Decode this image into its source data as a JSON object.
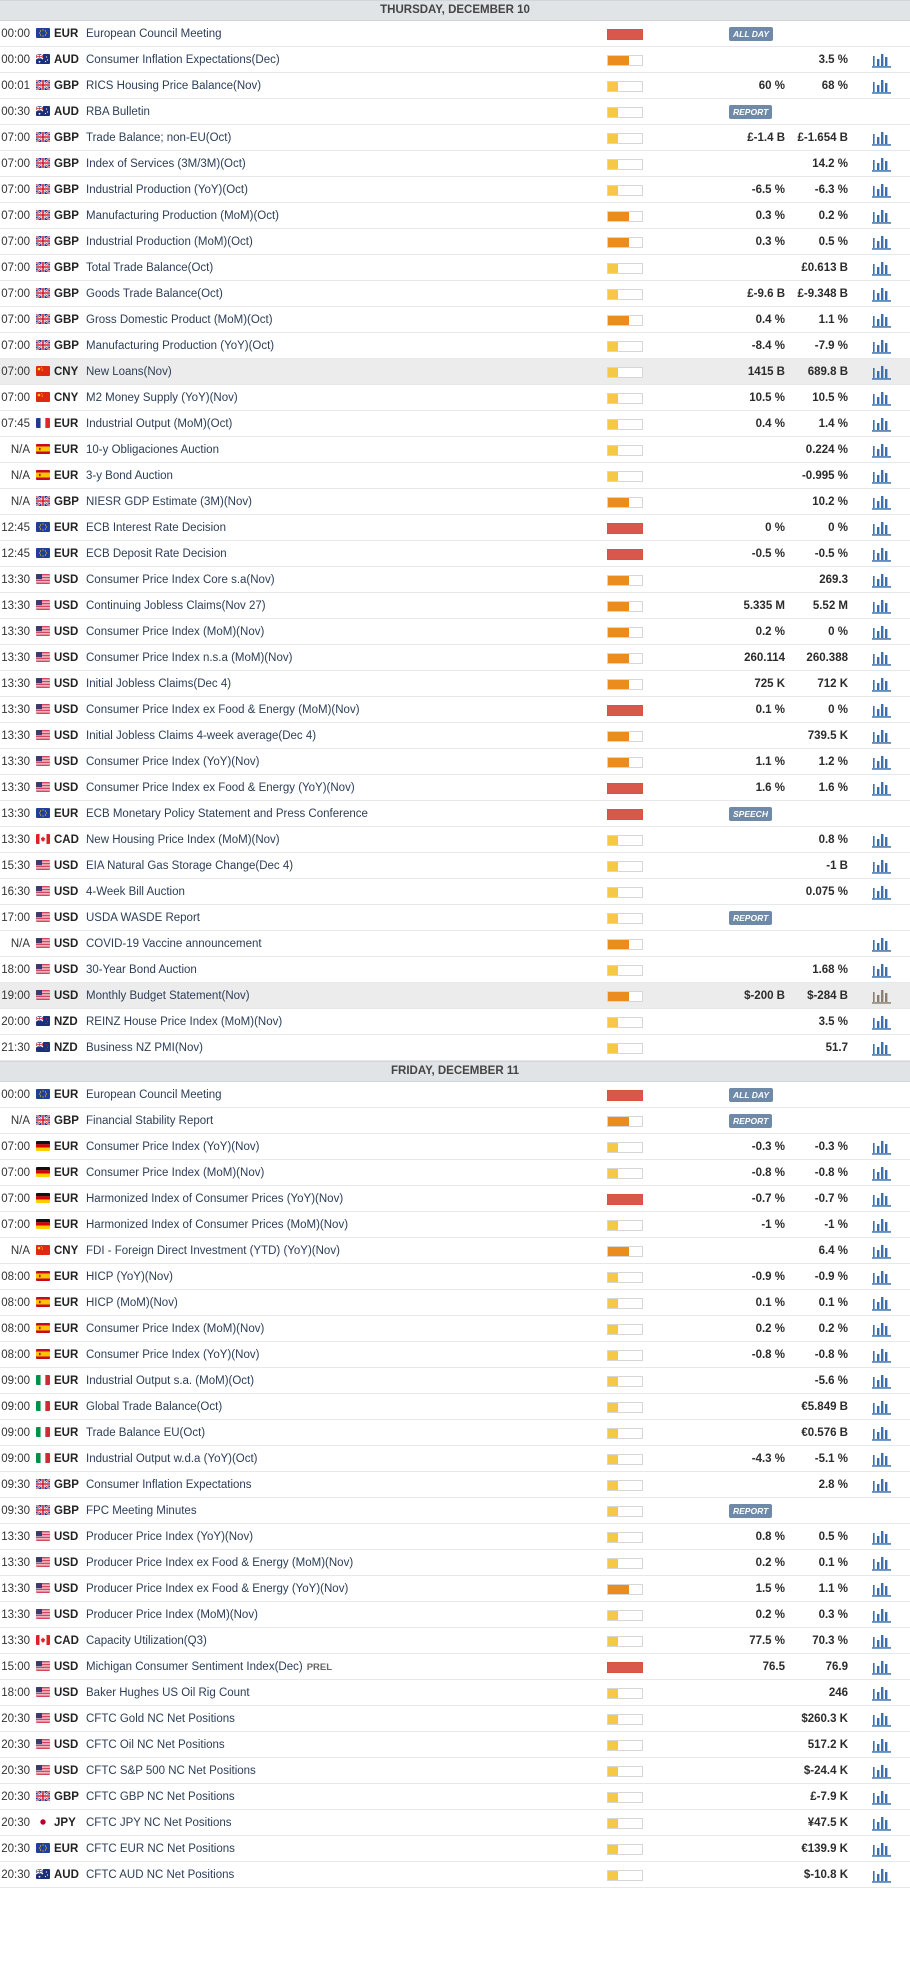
{
  "days": [
    {
      "label": "THURSDAY, DECEMBER 10",
      "events": [
        {
          "time": "00:00",
          "flag": "eu",
          "currency": "EUR",
          "name": "European Council Meeting",
          "volatility": "high",
          "badge": "ALL DAY"
        },
        {
          "time": "00:00",
          "flag": "au",
          "currency": "AUD",
          "name": "Consumer Inflation Expectations(Dec)",
          "volatility": "med",
          "consensus": "",
          "previous": "3.5 %",
          "chart": true
        },
        {
          "time": "00:01",
          "flag": "gb",
          "currency": "GBP",
          "name": "RICS Housing Price Balance(Nov)",
          "volatility": "low",
          "consensus": "60 %",
          "previous": "68 %",
          "chart": true
        },
        {
          "time": "00:30",
          "flag": "au",
          "currency": "AUD",
          "name": "RBA Bulletin",
          "volatility": "low",
          "badge": "REPORT"
        },
        {
          "time": "07:00",
          "flag": "gb",
          "currency": "GBP",
          "name": "Trade Balance; non-EU(Oct)",
          "volatility": "low",
          "consensus": "£-1.4 B",
          "previous": "£-1.654 B",
          "chart": true
        },
        {
          "time": "07:00",
          "flag": "gb",
          "currency": "GBP",
          "name": "Index of Services (3M/3M)(Oct)",
          "volatility": "low",
          "consensus": "",
          "previous": "14.2 %",
          "chart": true
        },
        {
          "time": "07:00",
          "flag": "gb",
          "currency": "GBP",
          "name": "Industrial Production (YoY)(Oct)",
          "volatility": "low",
          "consensus": "-6.5 %",
          "previous": "-6.3 %",
          "chart": true
        },
        {
          "time": "07:00",
          "flag": "gb",
          "currency": "GBP",
          "name": "Manufacturing Production (MoM)(Oct)",
          "volatility": "med",
          "consensus": "0.3 %",
          "previous": "0.2 %",
          "chart": true
        },
        {
          "time": "07:00",
          "flag": "gb",
          "currency": "GBP",
          "name": "Industrial Production (MoM)(Oct)",
          "volatility": "med",
          "consensus": "0.3 %",
          "previous": "0.5 %",
          "chart": true
        },
        {
          "time": "07:00",
          "flag": "gb",
          "currency": "GBP",
          "name": "Total Trade Balance(Oct)",
          "volatility": "low",
          "consensus": "",
          "previous": "£0.613 B",
          "chart": true
        },
        {
          "time": "07:00",
          "flag": "gb",
          "currency": "GBP",
          "name": "Goods Trade Balance(Oct)",
          "volatility": "low",
          "consensus": "£-9.6 B",
          "previous": "£-9.348 B",
          "chart": true
        },
        {
          "time": "07:00",
          "flag": "gb",
          "currency": "GBP",
          "name": "Gross Domestic Product (MoM)(Oct)",
          "volatility": "med",
          "consensus": "0.4 %",
          "previous": "1.1 %",
          "chart": true
        },
        {
          "time": "07:00",
          "flag": "gb",
          "currency": "GBP",
          "name": "Manufacturing Production (YoY)(Oct)",
          "volatility": "low",
          "consensus": "-8.4 %",
          "previous": "-7.9 %",
          "chart": true
        },
        {
          "time": "07:00",
          "flag": "cn",
          "currency": "CNY",
          "name": "New Loans(Nov)",
          "volatility": "low",
          "consensus": "1415 B",
          "previous": "689.8 B",
          "chart": true,
          "highlight": true
        },
        {
          "time": "07:00",
          "flag": "cn",
          "currency": "CNY",
          "name": "M2 Money Supply (YoY)(Nov)",
          "volatility": "low",
          "consensus": "10.5 %",
          "previous": "10.5 %",
          "chart": true
        },
        {
          "time": "07:45",
          "flag": "fr",
          "currency": "EUR",
          "name": "Industrial Output (MoM)(Oct)",
          "volatility": "low",
          "consensus": "0.4 %",
          "previous": "1.4 %",
          "chart": true
        },
        {
          "time": "N/A",
          "flag": "es",
          "currency": "EUR",
          "name": "10-y Obligaciones Auction",
          "volatility": "low",
          "consensus": "",
          "previous": "0.224 %",
          "chart": true
        },
        {
          "time": "N/A",
          "flag": "es",
          "currency": "EUR",
          "name": "3-y Bond Auction",
          "volatility": "low",
          "consensus": "",
          "previous": "-0.995 %",
          "chart": true
        },
        {
          "time": "N/A",
          "flag": "gb",
          "currency": "GBP",
          "name": "NIESR GDP Estimate (3M)(Nov)",
          "volatility": "med",
          "consensus": "",
          "previous": "10.2 %",
          "chart": true
        },
        {
          "time": "12:45",
          "flag": "eu",
          "currency": "EUR",
          "name": "ECB Interest Rate Decision",
          "volatility": "high",
          "consensus": "0 %",
          "previous": "0 %",
          "chart": true
        },
        {
          "time": "12:45",
          "flag": "eu",
          "currency": "EUR",
          "name": "ECB Deposit Rate Decision",
          "volatility": "high",
          "consensus": "-0.5 %",
          "previous": "-0.5 %",
          "chart": true
        },
        {
          "time": "13:30",
          "flag": "us",
          "currency": "USD",
          "name": "Consumer Price Index Core s.a(Nov)",
          "volatility": "med",
          "consensus": "",
          "previous": "269.3",
          "chart": true
        },
        {
          "time": "13:30",
          "flag": "us",
          "currency": "USD",
          "name": "Continuing Jobless Claims(Nov 27)",
          "volatility": "med",
          "consensus": "5.335 M",
          "previous": "5.52 M",
          "chart": true
        },
        {
          "time": "13:30",
          "flag": "us",
          "currency": "USD",
          "name": "Consumer Price Index (MoM)(Nov)",
          "volatility": "med",
          "consensus": "0.2 %",
          "previous": "0 %",
          "chart": true
        },
        {
          "time": "13:30",
          "flag": "us",
          "currency": "USD",
          "name": "Consumer Price Index n.s.a (MoM)(Nov)",
          "volatility": "med",
          "consensus": "260.114",
          "previous": "260.388",
          "chart": true
        },
        {
          "time": "13:30",
          "flag": "us",
          "currency": "USD",
          "name": "Initial Jobless Claims(Dec 4)",
          "volatility": "med",
          "consensus": "725 K",
          "previous": "712 K",
          "chart": true
        },
        {
          "time": "13:30",
          "flag": "us",
          "currency": "USD",
          "name": "Consumer Price Index ex Food & Energy (MoM)(Nov)",
          "volatility": "high",
          "consensus": "0.1 %",
          "previous": "0 %",
          "chart": true
        },
        {
          "time": "13:30",
          "flag": "us",
          "currency": "USD",
          "name": "Initial Jobless Claims 4-week average(Dec 4)",
          "volatility": "med",
          "consensus": "",
          "previous": "739.5 K",
          "chart": true
        },
        {
          "time": "13:30",
          "flag": "us",
          "currency": "USD",
          "name": "Consumer Price Index (YoY)(Nov)",
          "volatility": "med",
          "consensus": "1.1 %",
          "previous": "1.2 %",
          "chart": true
        },
        {
          "time": "13:30",
          "flag": "us",
          "currency": "USD",
          "name": "Consumer Price Index ex Food & Energy (YoY)(Nov)",
          "volatility": "high",
          "consensus": "1.6 %",
          "previous": "1.6 %",
          "chart": true
        },
        {
          "time": "13:30",
          "flag": "eu",
          "currency": "EUR",
          "name": "ECB Monetary Policy Statement and Press Conference",
          "volatility": "high",
          "badge": "SPEECH"
        },
        {
          "time": "13:30",
          "flag": "ca",
          "currency": "CAD",
          "name": "New Housing Price Index (MoM)(Nov)",
          "volatility": "low",
          "consensus": "",
          "previous": "0.8 %",
          "chart": true
        },
        {
          "time": "15:30",
          "flag": "us",
          "currency": "USD",
          "name": "EIA Natural Gas Storage Change(Dec 4)",
          "volatility": "low",
          "consensus": "",
          "previous": "-1 B",
          "chart": true
        },
        {
          "time": "16:30",
          "flag": "us",
          "currency": "USD",
          "name": "4-Week Bill Auction",
          "volatility": "low",
          "consensus": "",
          "previous": "0.075 %",
          "chart": true
        },
        {
          "time": "17:00",
          "flag": "us",
          "currency": "USD",
          "name": "USDA WASDE Report",
          "volatility": "low",
          "badge": "REPORT"
        },
        {
          "time": "N/A",
          "flag": "us",
          "currency": "USD",
          "name": "COVID-19 Vaccine announcement",
          "volatility": "med",
          "consensus": "",
          "previous": "",
          "chart": true
        },
        {
          "time": "18:00",
          "flag": "us",
          "currency": "USD",
          "name": "30-Year Bond Auction",
          "volatility": "low",
          "consensus": "",
          "previous": "1.68 %",
          "chart": true
        },
        {
          "time": "19:00",
          "flag": "us",
          "currency": "USD",
          "name": "Monthly Budget Statement(Nov)",
          "volatility": "med",
          "consensus": "$-200 B",
          "previous": "$-284 B",
          "chart": true,
          "highlight": true,
          "chart_color": "#8a7f72"
        },
        {
          "time": "20:00",
          "flag": "nz",
          "currency": "NZD",
          "name": "REINZ House Price Index (MoM)(Nov)",
          "volatility": "low",
          "consensus": "",
          "previous": "3.5 %",
          "chart": true
        },
        {
          "time": "21:30",
          "flag": "nz",
          "currency": "NZD",
          "name": "Business NZ PMI(Nov)",
          "volatility": "low",
          "consensus": "",
          "previous": "51.7",
          "chart": true
        }
      ]
    },
    {
      "label": "FRIDAY, DECEMBER 11",
      "events": [
        {
          "time": "00:00",
          "flag": "eu",
          "currency": "EUR",
          "name": "European Council Meeting",
          "volatility": "high",
          "badge": "ALL DAY"
        },
        {
          "time": "N/A",
          "flag": "gb",
          "currency": "GBP",
          "name": "Financial Stability Report",
          "volatility": "med",
          "badge": "REPORT"
        },
        {
          "time": "07:00",
          "flag": "de",
          "currency": "EUR",
          "name": "Consumer Price Index (YoY)(Nov)",
          "volatility": "low",
          "consensus": "-0.3 %",
          "previous": "-0.3 %",
          "chart": true
        },
        {
          "time": "07:00",
          "flag": "de",
          "currency": "EUR",
          "name": "Consumer Price Index (MoM)(Nov)",
          "volatility": "low",
          "consensus": "-0.8 %",
          "previous": "-0.8 %",
          "chart": true
        },
        {
          "time": "07:00",
          "flag": "de",
          "currency": "EUR",
          "name": "Harmonized Index of Consumer Prices (YoY)(Nov)",
          "volatility": "high",
          "consensus": "-0.7 %",
          "previous": "-0.7 %",
          "chart": true
        },
        {
          "time": "07:00",
          "flag": "de",
          "currency": "EUR",
          "name": "Harmonized Index of Consumer Prices (MoM)(Nov)",
          "volatility": "low",
          "consensus": "-1 %",
          "previous": "-1 %",
          "chart": true
        },
        {
          "time": "N/A",
          "flag": "cn",
          "currency": "CNY",
          "name": "FDI - Foreign Direct Investment (YTD) (YoY)(Nov)",
          "volatility": "med",
          "consensus": "",
          "previous": "6.4 %",
          "chart": true
        },
        {
          "time": "08:00",
          "flag": "es",
          "currency": "EUR",
          "name": "HICP (YoY)(Nov)",
          "volatility": "low",
          "consensus": "-0.9 %",
          "previous": "-0.9 %",
          "chart": true
        },
        {
          "time": "08:00",
          "flag": "es",
          "currency": "EUR",
          "name": "HICP (MoM)(Nov)",
          "volatility": "low",
          "consensus": "0.1 %",
          "previous": "0.1 %",
          "chart": true
        },
        {
          "time": "08:00",
          "flag": "es",
          "currency": "EUR",
          "name": "Consumer Price Index (MoM)(Nov)",
          "volatility": "low",
          "consensus": "0.2 %",
          "previous": "0.2 %",
          "chart": true
        },
        {
          "time": "08:00",
          "flag": "es",
          "currency": "EUR",
          "name": "Consumer Price Index (YoY)(Nov)",
          "volatility": "low",
          "consensus": "-0.8 %",
          "previous": "-0.8 %",
          "chart": true
        },
        {
          "time": "09:00",
          "flag": "it",
          "currency": "EUR",
          "name": "Industrial Output s.a. (MoM)(Oct)",
          "volatility": "low",
          "consensus": "",
          "previous": "-5.6 %",
          "chart": true
        },
        {
          "time": "09:00",
          "flag": "it",
          "currency": "EUR",
          "name": "Global Trade Balance(Oct)",
          "volatility": "low",
          "consensus": "",
          "previous": "€5.849 B",
          "chart": true
        },
        {
          "time": "09:00",
          "flag": "it",
          "currency": "EUR",
          "name": "Trade Balance EU(Oct)",
          "volatility": "low",
          "consensus": "",
          "previous": "€0.576 B",
          "chart": true
        },
        {
          "time": "09:00",
          "flag": "it",
          "currency": "EUR",
          "name": "Industrial Output w.d.a (YoY)(Oct)",
          "volatility": "low",
          "consensus": "-4.3 %",
          "previous": "-5.1 %",
          "chart": true
        },
        {
          "time": "09:30",
          "flag": "gb",
          "currency": "GBP",
          "name": "Consumer Inflation Expectations",
          "volatility": "low",
          "consensus": "",
          "previous": "2.8 %",
          "chart": true
        },
        {
          "time": "09:30",
          "flag": "gb",
          "currency": "GBP",
          "name": "FPC Meeting Minutes",
          "volatility": "low",
          "badge": "REPORT"
        },
        {
          "time": "13:30",
          "flag": "us",
          "currency": "USD",
          "name": "Producer Price Index (YoY)(Nov)",
          "volatility": "low",
          "consensus": "0.8 %",
          "previous": "0.5 %",
          "chart": true
        },
        {
          "time": "13:30",
          "flag": "us",
          "currency": "USD",
          "name": "Producer Price Index ex Food & Energy (MoM)(Nov)",
          "volatility": "low",
          "consensus": "0.2 %",
          "previous": "0.1 %",
          "chart": true
        },
        {
          "time": "13:30",
          "flag": "us",
          "currency": "USD",
          "name": "Producer Price Index ex Food & Energy (YoY)(Nov)",
          "volatility": "med",
          "consensus": "1.5 %",
          "previous": "1.1 %",
          "chart": true
        },
        {
          "time": "13:30",
          "flag": "us",
          "currency": "USD",
          "name": "Producer Price Index (MoM)(Nov)",
          "volatility": "low",
          "consensus": "0.2 %",
          "previous": "0.3 %",
          "chart": true
        },
        {
          "time": "13:30",
          "flag": "ca",
          "currency": "CAD",
          "name": "Capacity Utilization(Q3)",
          "volatility": "low",
          "consensus": "77.5 %",
          "previous": "70.3 %",
          "chart": true
        },
        {
          "time": "15:00",
          "flag": "us",
          "currency": "USD",
          "name": "Michigan Consumer Sentiment Index(Dec)",
          "tag": "PREL",
          "volatility": "high",
          "consensus": "76.5",
          "previous": "76.9",
          "chart": true
        },
        {
          "time": "18:00",
          "flag": "us",
          "currency": "USD",
          "name": "Baker Hughes US Oil Rig Count",
          "volatility": "low",
          "consensus": "",
          "previous": "246",
          "chart": true
        },
        {
          "time": "20:30",
          "flag": "us",
          "currency": "USD",
          "name": "CFTC Gold NC Net Positions",
          "volatility": "low",
          "consensus": "",
          "previous": "$260.3 K",
          "chart": true
        },
        {
          "time": "20:30",
          "flag": "us",
          "currency": "USD",
          "name": "CFTC Oil NC Net Positions",
          "volatility": "low",
          "consensus": "",
          "previous": "517.2 K",
          "chart": true
        },
        {
          "time": "20:30",
          "flag": "us",
          "currency": "USD",
          "name": "CFTC S&P 500 NC Net Positions",
          "volatility": "low",
          "consensus": "",
          "previous": "$-24.4 K",
          "chart": true
        },
        {
          "time": "20:30",
          "flag": "gb",
          "currency": "GBP",
          "name": "CFTC GBP NC Net Positions",
          "volatility": "low",
          "consensus": "",
          "previous": "£-7.9 K",
          "chart": true
        },
        {
          "time": "20:30",
          "flag": "jp",
          "currency": "JPY",
          "name": "CFTC JPY NC Net Positions",
          "volatility": "low",
          "consensus": "",
          "previous": "¥47.5 K",
          "chart": true
        },
        {
          "time": "20:30",
          "flag": "eu",
          "currency": "EUR",
          "name": "CFTC EUR NC Net Positions",
          "volatility": "low",
          "consensus": "",
          "previous": "€139.9 K",
          "chart": true
        },
        {
          "time": "20:30",
          "flag": "au",
          "currency": "AUD",
          "name": "CFTC AUD NC Net Positions",
          "volatility": "low",
          "consensus": "",
          "previous": "$-10.8 K",
          "chart": true
        }
      ]
    }
  ],
  "colors": {
    "chart_icon": "#3a6fb0",
    "badge": "#6e8aa8",
    "vol_low": "#f5c945",
    "vol_med": "#ea8d1e",
    "vol_high": "#d9584c"
  }
}
